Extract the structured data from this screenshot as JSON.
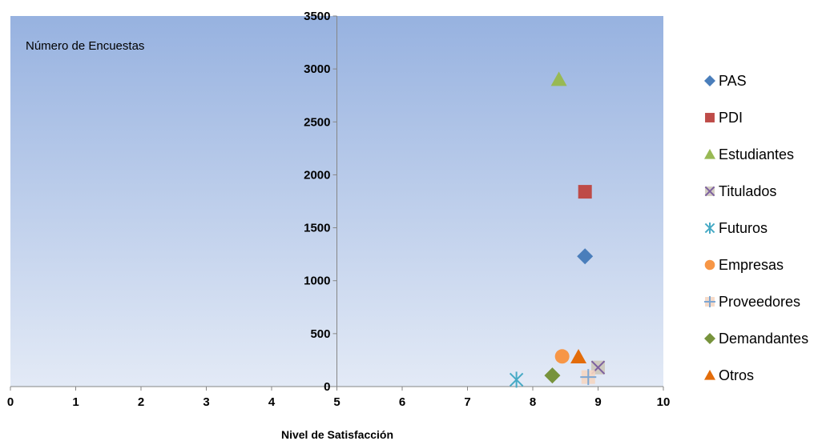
{
  "chart_data": {
    "type": "scatter",
    "xlabel": "Nivel de Satisfacción",
    "ylabel": "Número de Encuestas",
    "xlim": [
      0,
      10
    ],
    "ylim": [
      0,
      3500
    ],
    "x_ticks": [
      "0",
      "1",
      "2",
      "3",
      "4",
      "5",
      "6",
      "7",
      "8",
      "9",
      "10"
    ],
    "y_ticks": [
      "0",
      "500",
      "1000",
      "1500",
      "2000",
      "2500",
      "3000",
      "3500"
    ],
    "y_axis_crosses_x": 5,
    "grid": false,
    "legend_position": "right",
    "plot_background": {
      "top": "#97b2e0",
      "bottom": "#e3eaf6"
    },
    "series": [
      {
        "name": "PAS",
        "marker": "diamond",
        "color": "#4a7ebb",
        "points": [
          [
            8.8,
            1230
          ]
        ]
      },
      {
        "name": "PDI",
        "marker": "square",
        "color": "#be4b48",
        "points": [
          [
            8.8,
            1840
          ]
        ]
      },
      {
        "name": "Estudiantes",
        "marker": "triangle",
        "color": "#98b954",
        "points": [
          [
            8.4,
            2900
          ]
        ]
      },
      {
        "name": "Titulados",
        "marker": "x-box",
        "color": "#7d60a0",
        "points": [
          [
            9.0,
            180
          ]
        ]
      },
      {
        "name": "Futuros",
        "marker": "asterisk",
        "color": "#46aac5",
        "points": [
          [
            7.75,
            65
          ]
        ]
      },
      {
        "name": "Empresas",
        "marker": "circle",
        "color": "#f79646",
        "points": [
          [
            8.45,
            285
          ]
        ]
      },
      {
        "name": "Proveedores",
        "marker": "plus",
        "color": "#7ea7d3",
        "points": [
          [
            8.85,
            90
          ]
        ]
      },
      {
        "name": "Demandantes",
        "marker": "diamond",
        "color": "#77933c",
        "points": [
          [
            8.3,
            105
          ]
        ]
      },
      {
        "name": "Otros",
        "marker": "triangle",
        "color": "#e36c0a",
        "points": [
          [
            8.7,
            280
          ]
        ]
      }
    ]
  }
}
